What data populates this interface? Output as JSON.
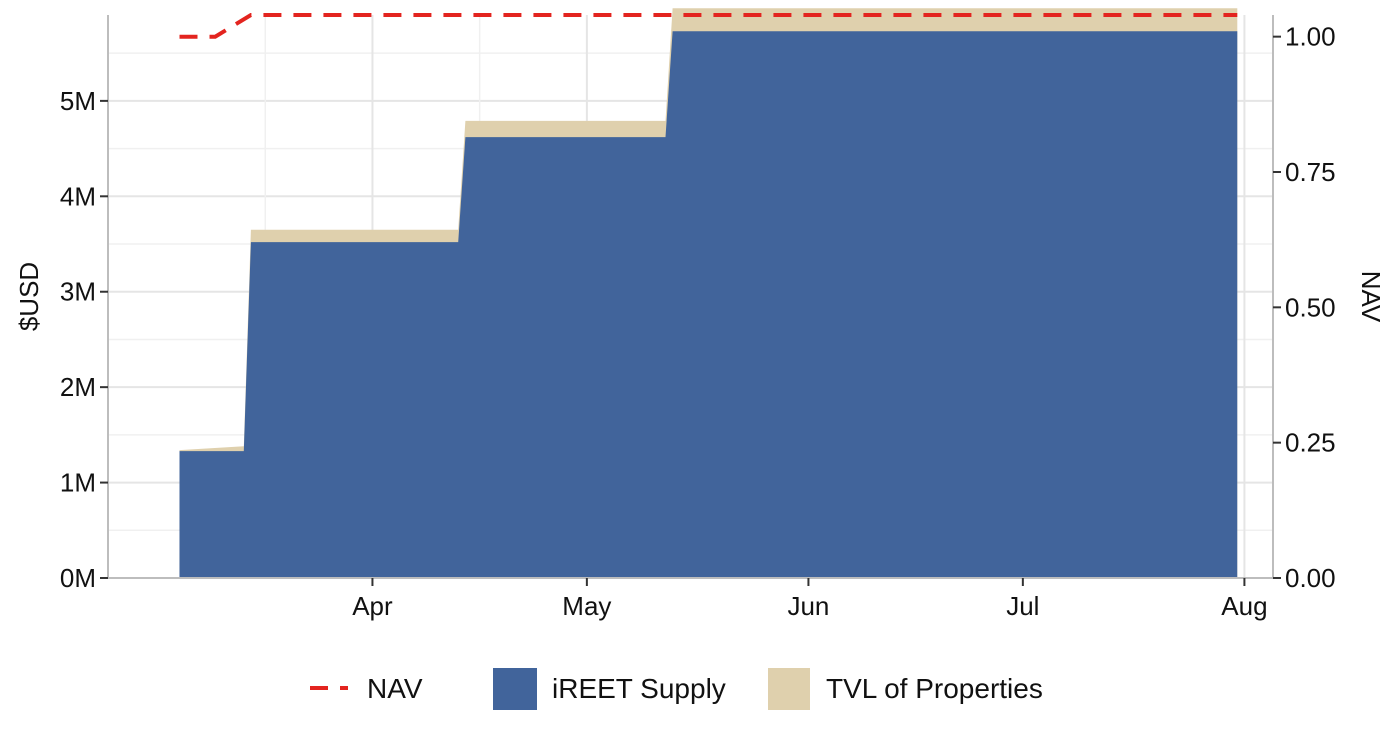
{
  "chart_data": {
    "type": "area",
    "x_dates": [
      "2024-03-05",
      "2024-03-14",
      "2024-03-15",
      "2024-04-13",
      "2024-04-14",
      "2024-05-12",
      "2024-05-13",
      "2024-07-31"
    ],
    "series": [
      {
        "name": "iREET Supply",
        "values": [
          1.33,
          1.33,
          3.52,
          3.52,
          4.62,
          4.62,
          5.73,
          5.73
        ],
        "color": "#41649b"
      },
      {
        "name": "TVL of Properties",
        "values": [
          1.34,
          1.38,
          3.65,
          3.65,
          4.79,
          4.79,
          5.97,
          5.97
        ],
        "color": "#dfd0ad"
      },
      {
        "name": "NAV",
        "axis": "right",
        "x_dates": [
          "2024-03-05",
          "2024-03-10",
          "2024-03-15",
          "2024-07-31"
        ],
        "values": [
          1.0,
          1.0,
          1.04,
          1.04
        ],
        "color": "#e3241f",
        "dashed": true
      }
    ],
    "x_ticks": [
      {
        "date": "2024-04-01",
        "label": "Apr"
      },
      {
        "date": "2024-05-01",
        "label": "May"
      },
      {
        "date": "2024-06-01",
        "label": "Jun"
      },
      {
        "date": "2024-07-01",
        "label": "Jul"
      },
      {
        "date": "2024-08-01",
        "label": "Aug"
      }
    ],
    "xlim": [
      "2024-02-24",
      "2024-08-05"
    ],
    "ylabel": "$USD",
    "ylim": [
      0,
      5.9
    ],
    "y_ticks": [
      {
        "value": 0,
        "label": "0M"
      },
      {
        "value": 1,
        "label": "1M"
      },
      {
        "value": 2,
        "label": "2M"
      },
      {
        "value": 3,
        "label": "3M"
      },
      {
        "value": 4,
        "label": "4M"
      },
      {
        "value": 5,
        "label": "5M"
      }
    ],
    "y2label": "NAV",
    "y2lim": [
      0,
      1.04
    ],
    "y2_ticks": [
      {
        "value": 0,
        "label": "0.00"
      },
      {
        "value": 0.25,
        "label": "0.25"
      },
      {
        "value": 0.5,
        "label": "0.50"
      },
      {
        "value": 0.75,
        "label": "0.75"
      },
      {
        "value": 1.0,
        "label": "1.00"
      }
    ],
    "grid": true,
    "legend": {
      "position": "bottom",
      "entries": [
        "NAV",
        "iREET Supply",
        "TVL of Properties"
      ]
    }
  }
}
